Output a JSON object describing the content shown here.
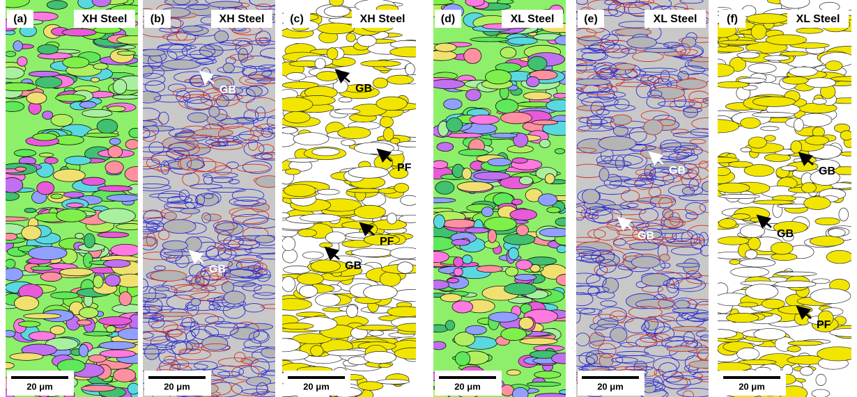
{
  "panels": [
    {
      "label": "(a)",
      "title": "XH Steel",
      "scale_bar": "20 μm",
      "annotations": []
    },
    {
      "label": "(b)",
      "title": "XH Steel",
      "scale_bar": "20 μm",
      "annotations": [
        "GB",
        "GB"
      ]
    },
    {
      "label": "(c)",
      "title": "XH Steel",
      "scale_bar": "20 μm",
      "annotations": [
        "GB",
        "PF",
        "PF",
        "GB"
      ]
    },
    {
      "label": "(d)",
      "title": "XL Steel",
      "scale_bar": "20 μm",
      "annotations": []
    },
    {
      "label": "(e)",
      "title": "XL Steel",
      "scale_bar": "20 μm",
      "annotations": [
        "GB",
        "GB"
      ]
    },
    {
      "label": "(f)",
      "title": "XL Steel",
      "scale_bar": "20 μm",
      "annotations": [
        "GB",
        "GB",
        "PF"
      ]
    }
  ]
}
